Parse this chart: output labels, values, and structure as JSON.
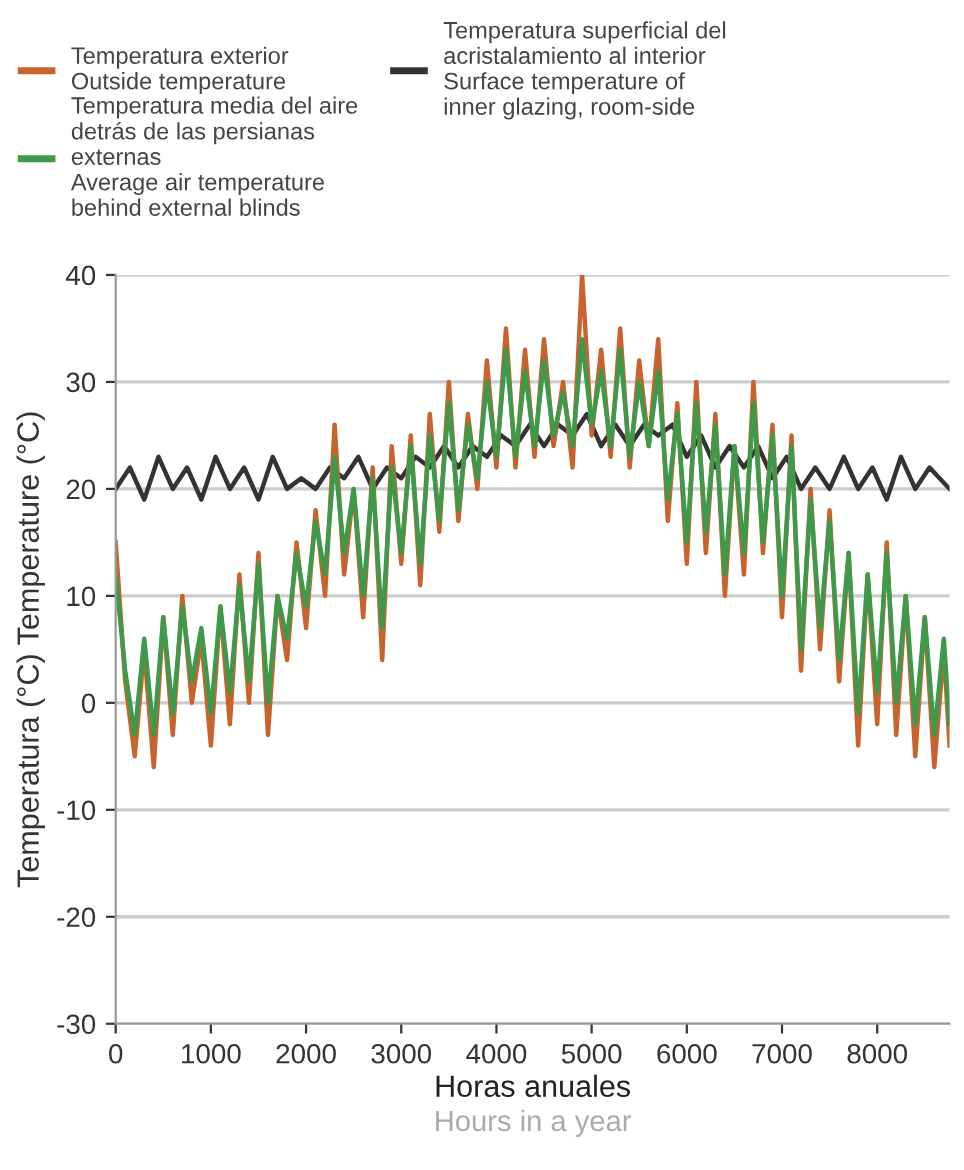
{
  "chart_data": {
    "type": "line",
    "xlabel": "Horas anuales\nHours in a year",
    "ylabel": "Temperatura (°C) Temperature (°C)",
    "xlim": [
      0,
      8760
    ],
    "xticks": [
      0,
      1000,
      2000,
      3000,
      4000,
      5000,
      6000,
      7000,
      8000
    ],
    "ylim": [
      -30,
      40
    ],
    "yticks": [
      -30,
      -20,
      -10,
      0,
      10,
      20,
      30,
      40
    ],
    "grid": "y",
    "legend": "top left",
    "series": [
      {
        "name": "Temperatura superficial del\nacristalamiento al interior\nSurface temperature of\ninner glazing, room-side",
        "color": "#333333",
        "x": [
          0,
          150,
          300,
          450,
          600,
          750,
          900,
          1050,
          1200,
          1350,
          1500,
          1650,
          1800,
          1950,
          2100,
          2250,
          2400,
          2550,
          2700,
          2850,
          3000,
          3150,
          3300,
          3450,
          3600,
          3750,
          3900,
          4050,
          4200,
          4350,
          4500,
          4650,
          4800,
          4950,
          5100,
          5250,
          5400,
          5550,
          5700,
          5850,
          6000,
          6150,
          6300,
          6450,
          6600,
          6750,
          6900,
          7050,
          7200,
          7350,
          7500,
          7650,
          7800,
          7950,
          8100,
          8250,
          8400,
          8550,
          8760
        ],
        "values": [
          20,
          22,
          19,
          23,
          20,
          22,
          19,
          23,
          20,
          22,
          19,
          23,
          20,
          21,
          20,
          22,
          21,
          23,
          20,
          22,
          21,
          23,
          22,
          24,
          22,
          24,
          23,
          25,
          24,
          26,
          24,
          26,
          25,
          27,
          24,
          26,
          24,
          26,
          25,
          26,
          23,
          25,
          22,
          24,
          22,
          24,
          21,
          23,
          20,
          22,
          20,
          23,
          20,
          22,
          19,
          23,
          20,
          22,
          20
        ]
      },
      {
        "name": "Temperatura exterior\nOutside temperature",
        "color": "#c8632e",
        "x": [
          0,
          100,
          200,
          300,
          400,
          500,
          600,
          700,
          800,
          900,
          1000,
          1100,
          1200,
          1300,
          1400,
          1500,
          1600,
          1700,
          1800,
          1900,
          2000,
          2100,
          2200,
          2300,
          2400,
          2500,
          2600,
          2700,
          2800,
          2900,
          3000,
          3100,
          3200,
          3300,
          3400,
          3500,
          3600,
          3700,
          3800,
          3900,
          4000,
          4100,
          4200,
          4300,
          4400,
          4500,
          4600,
          4700,
          4800,
          4900,
          5000,
          5100,
          5200,
          5300,
          5400,
          5500,
          5600,
          5700,
          5800,
          5900,
          6000,
          6100,
          6200,
          6300,
          6400,
          6500,
          6600,
          6700,
          6800,
          6900,
          7000,
          7100,
          7200,
          7300,
          7400,
          7500,
          7600,
          7700,
          7800,
          7900,
          8000,
          8100,
          8200,
          8300,
          8400,
          8500,
          8600,
          8700,
          8760
        ],
        "values": [
          15,
          2,
          -5,
          5,
          -6,
          8,
          -3,
          10,
          0,
          6,
          -4,
          9,
          -2,
          12,
          0,
          14,
          -3,
          10,
          4,
          15,
          7,
          18,
          10,
          26,
          12,
          20,
          8,
          22,
          4,
          24,
          13,
          25,
          11,
          27,
          16,
          30,
          17,
          27,
          20,
          32,
          22,
          35,
          22,
          33,
          23,
          34,
          24,
          30,
          22,
          40,
          25,
          33,
          23,
          35,
          22,
          32,
          24,
          34,
          17,
          28,
          13,
          30,
          14,
          27,
          10,
          24,
          12,
          30,
          14,
          26,
          8,
          25,
          3,
          20,
          5,
          18,
          2,
          14,
          -4,
          12,
          -2,
          15,
          -3,
          10,
          -5,
          8,
          -6,
          5,
          -4
        ]
      },
      {
        "name": "Temperatura media del aire\ndetrás de las persianas\nexternas\nAverage air temperature\nbehind external blinds",
        "color": "#3e9a4a",
        "x": [
          0,
          100,
          200,
          300,
          400,
          500,
          600,
          700,
          800,
          900,
          1000,
          1100,
          1200,
          1300,
          1400,
          1500,
          1600,
          1700,
          1800,
          1900,
          2000,
          2100,
          2200,
          2300,
          2400,
          2500,
          2600,
          2700,
          2800,
          2900,
          3000,
          3100,
          3200,
          3300,
          3400,
          3500,
          3600,
          3700,
          3800,
          3900,
          4000,
          4100,
          4200,
          4300,
          4400,
          4500,
          4600,
          4700,
          4800,
          4900,
          5000,
          5100,
          5200,
          5300,
          5400,
          5500,
          5600,
          5700,
          5800,
          5900,
          6000,
          6100,
          6200,
          6300,
          6400,
          6500,
          6600,
          6700,
          6800,
          6900,
          7000,
          7100,
          7200,
          7300,
          7400,
          7500,
          7600,
          7700,
          7800,
          7900,
          8000,
          8100,
          8200,
          8300,
          8400,
          8500,
          8600,
          8700,
          8760
        ],
        "values": [
          12,
          3,
          -3,
          6,
          -3,
          8,
          -1,
          9,
          2,
          7,
          -1,
          9,
          1,
          11,
          2,
          13,
          0,
          10,
          6,
          14,
          9,
          17,
          12,
          23,
          14,
          20,
          10,
          21,
          7,
          22,
          14,
          24,
          13,
          25,
          17,
          28,
          18,
          26,
          21,
          30,
          23,
          33,
          23,
          31,
          24,
          32,
          25,
          29,
          24,
          34,
          26,
          31,
          24,
          33,
          23,
          30,
          24,
          31,
          19,
          27,
          15,
          28,
          16,
          26,
          12,
          24,
          14,
          28,
          15,
          25,
          10,
          24,
          5,
          19,
          7,
          17,
          4,
          14,
          -1,
          12,
          1,
          14,
          0,
          10,
          -2,
          8,
          -3,
          6,
          -2
        ]
      }
    ]
  }
}
